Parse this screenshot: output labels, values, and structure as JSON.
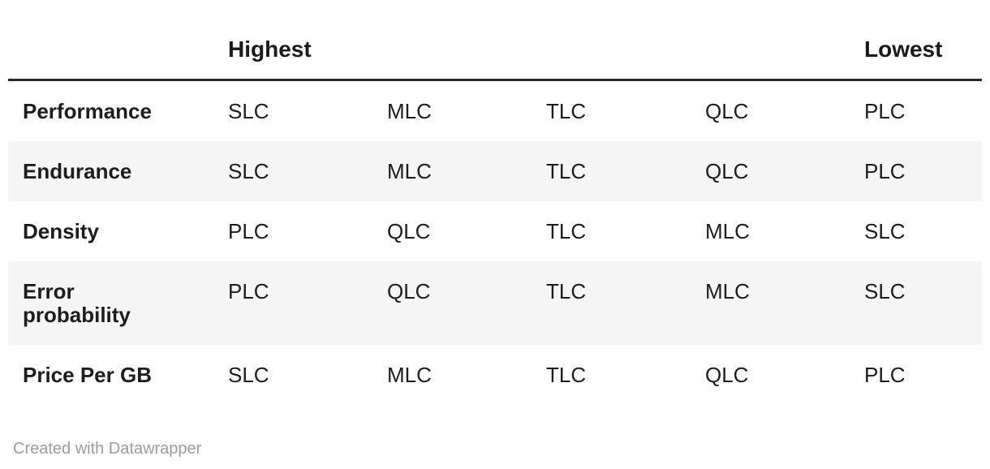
{
  "chart_data": {
    "type": "table",
    "title": "",
    "header": {
      "highest": "Highest",
      "lowest": "Lowest"
    },
    "rows": [
      {
        "label": "Performance",
        "cells": [
          "SLC",
          "MLC",
          "TLC",
          "QLC",
          "PLC"
        ]
      },
      {
        "label": "Endurance",
        "cells": [
          "SLC",
          "MLC",
          "TLC",
          "QLC",
          "PLC"
        ]
      },
      {
        "label": "Density",
        "cells": [
          "PLC",
          "QLC",
          "TLC",
          "MLC",
          "SLC"
        ]
      },
      {
        "label": "Error probability",
        "cells": [
          "PLC",
          "QLC",
          "TLC",
          "MLC",
          "SLC"
        ]
      },
      {
        "label": "Price Per GB",
        "cells": [
          "SLC",
          "MLC",
          "TLC",
          "QLC",
          "PLC"
        ]
      }
    ],
    "layout": {
      "striped_row_indexes": [
        1,
        3
      ],
      "grid": "off",
      "legend_position": "none"
    }
  },
  "footer": {
    "credit": "Created with Datawrapper"
  },
  "colors": {
    "text": "#1d1d1d",
    "header_text": "#1a1a1a",
    "rule": "#2a2a2a",
    "stripe": "#f5f5f5",
    "muted": "#9c9c9c",
    "background": "#ffffff"
  }
}
